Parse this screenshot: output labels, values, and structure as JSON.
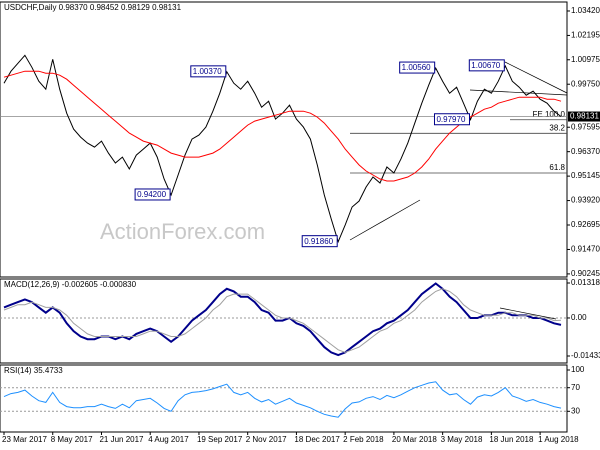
{
  "chart_data": [
    {
      "type": "line",
      "title": "USDCHF,Daily  0.98370 0.98452 0.98129 0.98131",
      "watermark": "ActionForex.com",
      "ylim": [
        0.9009,
        1.0387
      ],
      "yticks": [
        {
          "value": 1.0342,
          "label": "1.03420"
        },
        1.02195,
        {
          "value": 1.00975,
          "label": "1.00975"
        },
        {
          "value": 0.9975,
          "label": "0.99750"
        },
        0.97595,
        {
          "value": 0.9637,
          "label": "0.96370"
        },
        0.95145,
        {
          "value": 0.9392,
          "label": "0.93920"
        },
        0.92695,
        {
          "value": 0.9147,
          "label": "0.91470"
        },
        0.90245
      ],
      "last": 0.98131,
      "series": [
        {
          "name": "USDCHF",
          "color": "#000000",
          "values": [
            0.998,
            1.004,
            1.008,
            1.012,
            1.006,
            0.999,
            0.995,
            1.01,
            0.995,
            0.983,
            0.975,
            0.971,
            0.968,
            0.966,
            0.969,
            0.963,
            0.958,
            0.961,
            0.955,
            0.962,
            0.965,
            0.968,
            0.961,
            0.95,
            0.942,
            0.952,
            0.962,
            0.97,
            0.972,
            0.976,
            0.984,
            0.993,
            1.0037,
            0.998,
            0.995,
            0.999,
            0.993,
            0.986,
            0.989,
            0.98,
            0.983,
            0.987,
            0.98,
            0.976,
            0.97,
            0.957,
            0.942,
            0.93,
            0.9186,
            0.927,
            0.936,
            0.939,
            0.946,
            0.951,
            0.948,
            0.956,
            0.953,
            0.96,
            0.968,
            0.978,
            0.988,
            0.997,
            1.0056,
            0.999,
            0.993,
            0.996,
            0.988,
            0.9797,
            0.989,
            0.995,
            0.993,
            0.999,
            1.0067,
            0.999,
            0.996,
            0.992,
            0.994,
            0.99,
            0.988,
            0.984,
            0.98131
          ]
        },
        {
          "name": "MA",
          "color": "#ff0000",
          "values": [
            1.001,
            1.002,
            1.003,
            1.004,
            1.004,
            1.004,
            1.003,
            1.003,
            1.002,
            1.0,
            0.997,
            0.994,
            0.991,
            0.988,
            0.985,
            0.982,
            0.979,
            0.976,
            0.973,
            0.971,
            0.969,
            0.968,
            0.967,
            0.965,
            0.963,
            0.962,
            0.961,
            0.961,
            0.961,
            0.962,
            0.963,
            0.965,
            0.968,
            0.971,
            0.974,
            0.977,
            0.979,
            0.98,
            0.981,
            0.982,
            0.983,
            0.984,
            0.984,
            0.984,
            0.983,
            0.981,
            0.978,
            0.974,
            0.97,
            0.965,
            0.961,
            0.957,
            0.954,
            0.952,
            0.95,
            0.949,
            0.949,
            0.95,
            0.951,
            0.953,
            0.956,
            0.96,
            0.965,
            0.969,
            0.973,
            0.976,
            0.979,
            0.981,
            0.983,
            0.985,
            0.986,
            0.988,
            0.989,
            0.99,
            0.991,
            0.991,
            0.991,
            0.991,
            0.99,
            0.99,
            0.989
          ]
        }
      ],
      "annotations": [
        {
          "label": "1.00370",
          "value": 1.0037
        },
        {
          "label": "0.94200",
          "value": 0.942
        },
        {
          "label": "0.91860",
          "value": 0.9186
        },
        {
          "label": "1.00560",
          "value": 1.0056
        },
        {
          "label": "0.97970",
          "value": 0.9797
        },
        {
          "label": "1.00670",
          "value": 1.0067
        }
      ],
      "levels": [
        {
          "label": "FE 100.0",
          "value": 0.9797
        },
        {
          "label": "38.2",
          "value": 0.9729
        },
        {
          "label": "61.8",
          "value": 0.953
        }
      ]
    },
    {
      "type": "line",
      "title": "MACD(12,26,9) -0.002605 -0.000830",
      "ylim": [
        -0.014339,
        0.013184
      ],
      "yticks": [
        0.013184,
        {
          "value": 0,
          "label": "0.00"
        },
        -0.014339
      ],
      "series": [
        {
          "name": "MACD",
          "color": "#00008b",
          "values": [
            0.004,
            0.005,
            0.006,
            0.007,
            0.006,
            0.004,
            0.002,
            0.004,
            0.002,
            -0.002,
            -0.005,
            -0.007,
            -0.008,
            -0.008,
            -0.007,
            -0.007,
            -0.008,
            -0.007,
            -0.008,
            -0.006,
            -0.005,
            -0.004,
            -0.005,
            -0.007,
            -0.009,
            -0.007,
            -0.004,
            -0.001,
            0.001,
            0.003,
            0.006,
            0.009,
            0.011,
            0.01,
            0.008,
            0.008,
            0.006,
            0.003,
            0.002,
            -0.001,
            -0.001,
            0.0,
            -0.002,
            -0.003,
            -0.005,
            -0.008,
            -0.011,
            -0.013,
            -0.014,
            -0.013,
            -0.011,
            -0.009,
            -0.007,
            -0.005,
            -0.004,
            -0.002,
            -0.001,
            0.001,
            0.003,
            0.006,
            0.009,
            0.011,
            0.013,
            0.011,
            0.008,
            0.006,
            0.003,
            0.0,
            0.0,
            0.001,
            0.001,
            0.002,
            0.002,
            0.001,
            0.001,
            0.001,
            0.0,
            0.0,
            -0.001,
            -0.002,
            -0.002605
          ]
        },
        {
          "name": "Signal",
          "color": "#a0a0a0",
          "values": [
            0.003,
            0.004,
            0.005,
            0.005,
            0.006,
            0.005,
            0.004,
            0.004,
            0.003,
            0.001,
            -0.002,
            -0.004,
            -0.006,
            -0.007,
            -0.007,
            -0.007,
            -0.007,
            -0.007,
            -0.007,
            -0.007,
            -0.006,
            -0.005,
            -0.005,
            -0.006,
            -0.007,
            -0.007,
            -0.006,
            -0.004,
            -0.002,
            0.0,
            0.003,
            0.005,
            0.008,
            0.009,
            0.009,
            0.009,
            0.007,
            0.005,
            0.003,
            0.001,
            0.0,
            0.0,
            -0.001,
            -0.002,
            -0.004,
            -0.006,
            -0.008,
            -0.01,
            -0.012,
            -0.013,
            -0.012,
            -0.011,
            -0.009,
            -0.007,
            -0.005,
            -0.004,
            -0.002,
            -0.001,
            0.001,
            0.003,
            0.006,
            0.008,
            0.01,
            0.011,
            0.01,
            0.008,
            0.005,
            0.003,
            0.002,
            0.001,
            0.001,
            0.001,
            0.002,
            0.002,
            0.001,
            0.001,
            0.001,
            0.0,
            0.0,
            -0.001,
            -0.00083
          ]
        }
      ]
    },
    {
      "type": "line",
      "title": "RSI(14) 35.4733",
      "ylim": [
        0,
        100
      ],
      "yticks": [
        100,
        70,
        30
      ],
      "categories": [
        "23 Mar 2017",
        null,
        null,
        null,
        null,
        null,
        null,
        "8 May 2017",
        null,
        null,
        null,
        null,
        null,
        null,
        "21 Jun 2017",
        null,
        null,
        null,
        null,
        null,
        null,
        "4 Aug 2017",
        null,
        null,
        null,
        null,
        null,
        null,
        "19 Sep 2017",
        null,
        null,
        null,
        null,
        null,
        null,
        "2 Nov 2017",
        null,
        null,
        null,
        null,
        null,
        null,
        "18 Dec 2017",
        null,
        null,
        null,
        null,
        null,
        null,
        "2 Feb 2018",
        null,
        null,
        null,
        null,
        null,
        null,
        "20 Mar 2018",
        null,
        null,
        null,
        null,
        null,
        null,
        "3 May 2018",
        null,
        null,
        null,
        null,
        null,
        null,
        "18 Jun 2018",
        null,
        null,
        null,
        null,
        null,
        null,
        "1 Aug 2018",
        null,
        null,
        null
      ],
      "series": [
        {
          "name": "RSI",
          "color": "#1e90ff",
          "values": [
            55,
            60,
            62,
            66,
            56,
            48,
            45,
            62,
            45,
            38,
            36,
            36,
            38,
            38,
            42,
            38,
            35,
            42,
            36,
            48,
            50,
            52,
            44,
            35,
            30,
            48,
            58,
            62,
            63,
            65,
            68,
            72,
            76,
            62,
            58,
            62,
            52,
            46,
            50,
            42,
            47,
            52,
            44,
            40,
            36,
            30,
            25,
            22,
            20,
            34,
            44,
            46,
            52,
            55,
            50,
            57,
            53,
            58,
            64,
            70,
            74,
            78,
            80,
            66,
            58,
            60,
            50,
            42,
            54,
            58,
            56,
            62,
            70,
            56,
            52,
            47,
            50,
            45,
            42,
            38,
            35.4733
          ]
        }
      ]
    }
  ]
}
